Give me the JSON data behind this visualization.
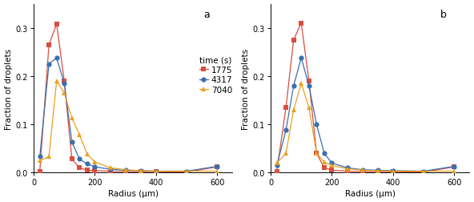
{
  "panel_a": {
    "label": "a",
    "series": [
      {
        "name": "1775",
        "color": "#d94e3f",
        "marker": "s",
        "x": [
          20,
          50,
          75,
          100,
          125,
          150,
          175,
          200,
          250,
          300,
          350,
          400,
          500,
          600
        ],
        "y": [
          0.003,
          0.265,
          0.308,
          0.19,
          0.028,
          0.01,
          0.005,
          0.004,
          0.003,
          0.002,
          0.002,
          0.002,
          0.001,
          0.012
        ]
      },
      {
        "name": "4317",
        "color": "#3a6faf",
        "marker": "o",
        "x": [
          20,
          50,
          75,
          100,
          125,
          150,
          175,
          200,
          250,
          300,
          350,
          400,
          500,
          600
        ],
        "y": [
          0.033,
          0.225,
          0.238,
          0.185,
          0.063,
          0.028,
          0.018,
          0.012,
          0.007,
          0.005,
          0.004,
          0.003,
          0.003,
          0.013
        ]
      },
      {
        "name": "7040",
        "color": "#e8a020",
        "marker": "^",
        "x": [
          20,
          50,
          75,
          100,
          125,
          150,
          175,
          200,
          250,
          300,
          350,
          400,
          500,
          600
        ],
        "y": [
          0.025,
          0.033,
          0.19,
          0.165,
          0.113,
          0.078,
          0.038,
          0.022,
          0.01,
          0.006,
          0.004,
          0.003,
          0.003,
          0.003
        ]
      }
    ]
  },
  "panel_b": {
    "label": "b",
    "series": [
      {
        "name": "1775",
        "color": "#d94e3f",
        "marker": "s",
        "x": [
          20,
          50,
          75,
          100,
          125,
          150,
          175,
          200,
          250,
          300,
          350,
          400,
          500,
          600
        ],
        "y": [
          0.003,
          0.135,
          0.275,
          0.31,
          0.19,
          0.04,
          0.01,
          0.005,
          0.003,
          0.002,
          0.002,
          0.002,
          0.001,
          0.012
        ]
      },
      {
        "name": "4317",
        "color": "#3a6faf",
        "marker": "o",
        "x": [
          20,
          50,
          75,
          100,
          125,
          150,
          175,
          200,
          250,
          300,
          350,
          400,
          500,
          600
        ],
        "y": [
          0.015,
          0.088,
          0.18,
          0.238,
          0.18,
          0.1,
          0.04,
          0.02,
          0.01,
          0.006,
          0.005,
          0.004,
          0.003,
          0.013
        ]
      },
      {
        "name": "7040",
        "color": "#e8a020",
        "marker": "^",
        "x": [
          20,
          50,
          75,
          100,
          125,
          150,
          175,
          200,
          250,
          300,
          350,
          400,
          500,
          600
        ],
        "y": [
          0.02,
          0.04,
          0.13,
          0.185,
          0.135,
          0.04,
          0.022,
          0.015,
          0.008,
          0.005,
          0.004,
          0.003,
          0.003,
          0.003
        ]
      }
    ]
  },
  "xlabel": "Radius (μm)",
  "ylabel": "Fraction of droplets",
  "xlim": [
    0,
    650
  ],
  "ylim": [
    0,
    0.35
  ],
  "yticks": [
    0.0,
    0.1,
    0.2,
    0.3
  ],
  "xticks": [
    0,
    200,
    400,
    600
  ],
  "legend_title": "time (s)",
  "markersize": 4.5,
  "linewidth": 0.9,
  "fontsize_label": 7.5,
  "fontsize_tick": 7,
  "fontsize_legend": 7.5,
  "fontsize_panel": 9
}
